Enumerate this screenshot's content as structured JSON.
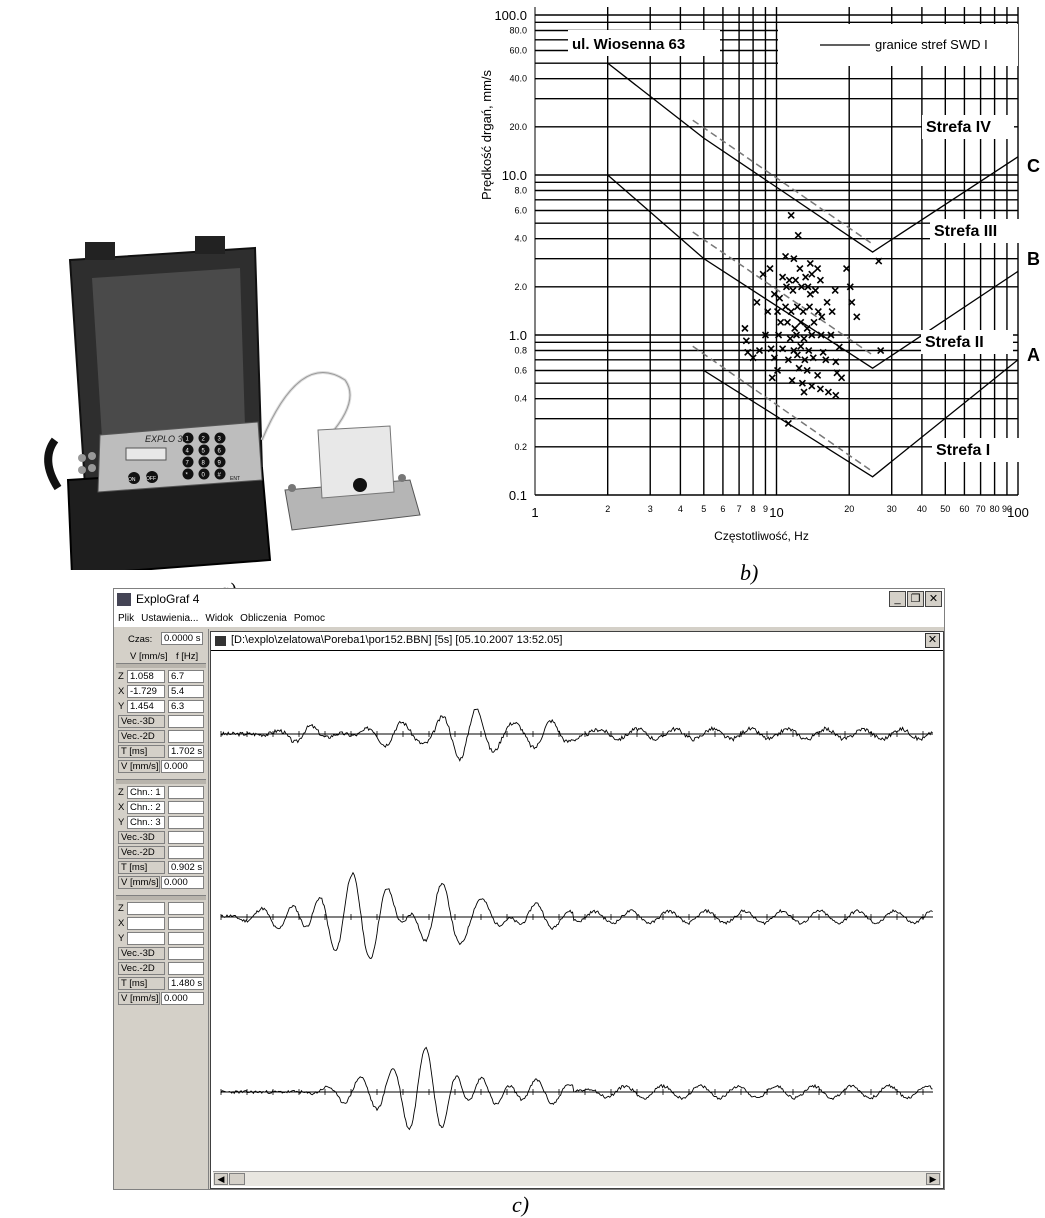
{
  "captions": {
    "a": "a)",
    "b": "b)",
    "c": "c)"
  },
  "photo": {
    "device_label": "EXPLO 384",
    "keypad_keys": [
      "1",
      "2",
      "3",
      "4",
      "5",
      "6",
      "7",
      "8",
      "9",
      "*",
      "0",
      "#"
    ],
    "on_label": "ON",
    "off_label": "OFF",
    "enter_label": "ENT"
  },
  "chart_data": {
    "type": "scatter",
    "title": "ul. Wiosenna 63",
    "xlabel": "Częstotliwość, Hz",
    "ylabel": "Prędkość drgań, mm/s",
    "xscale": "log",
    "yscale": "log",
    "xlim": [
      1,
      100
    ],
    "ylim": [
      0.1,
      100
    ],
    "grid": true,
    "legend": {
      "placement": "top-right",
      "entries": [
        "granice stref SWD I"
      ]
    },
    "x_ticks": [
      "1",
      "2",
      "3",
      "4",
      "5",
      "6",
      "7",
      "8",
      "9",
      "10",
      "20",
      "30",
      "40",
      "50",
      "60",
      "70",
      "80",
      "90",
      "100"
    ],
    "y_ticks": [
      "0.1",
      "0.2",
      "0.4",
      "0.6",
      "0.8",
      "1.0",
      "2.0",
      "4.0",
      "6.0",
      "8.0",
      "10.0",
      "20.0",
      "40.0",
      "60.0",
      "80.0",
      "100.0"
    ],
    "zone_labels": [
      "Strefa IV",
      "Strefa III",
      "Strefa II",
      "Strefa I"
    ],
    "curve_labels": [
      "C",
      "B",
      "A"
    ],
    "boundaries": [
      {
        "name": "C",
        "x": [
          2,
          5,
          25,
          100
        ],
        "y": [
          50,
          17,
          3.3,
          13
        ]
      },
      {
        "name": "B",
        "x": [
          2,
          5,
          25,
          100
        ],
        "y": [
          10,
          3,
          0.62,
          2.5
        ]
      },
      {
        "name": "A",
        "x": [
          2,
          5,
          25,
          100
        ],
        "y": [
          0.6,
          0.6,
          0.13,
          0.7
        ]
      }
    ],
    "dashed_boundaries": [
      {
        "x": [
          4.5,
          25
        ],
        "y": [
          22,
          3.7
        ]
      },
      {
        "x": [
          4.5,
          25
        ],
        "y": [
          4.4,
          0.75
        ]
      },
      {
        "x": [
          4.5,
          25
        ],
        "y": [
          0.85,
          0.14
        ]
      }
    ],
    "points": [
      [
        11.5,
        5.6
      ],
      [
        12.3,
        4.2
      ],
      [
        10.9,
        3.1
      ],
      [
        11.8,
        3.0
      ],
      [
        9.4,
        2.6
      ],
      [
        13.8,
        2.8
      ],
      [
        12.5,
        2.6
      ],
      [
        14.8,
        2.6
      ],
      [
        19.5,
        2.6
      ],
      [
        26.5,
        2.9
      ],
      [
        8.8,
        2.4
      ],
      [
        10.6,
        2.3
      ],
      [
        12.0,
        2.2
      ],
      [
        13.2,
        2.3
      ],
      [
        14.0,
        2.4
      ],
      [
        11.0,
        2.0
      ],
      [
        11.3,
        2.2
      ],
      [
        12.7,
        2.0
      ],
      [
        13.5,
        2.0
      ],
      [
        15.2,
        2.2
      ],
      [
        8.3,
        1.6
      ],
      [
        9.8,
        1.8
      ],
      [
        10.3,
        1.7
      ],
      [
        11.7,
        1.9
      ],
      [
        13.8,
        1.8
      ],
      [
        14.5,
        1.9
      ],
      [
        17.5,
        1.9
      ],
      [
        20.2,
        2.0
      ],
      [
        9.2,
        1.4
      ],
      [
        10.1,
        1.4
      ],
      [
        10.9,
        1.5
      ],
      [
        11.5,
        1.4
      ],
      [
        12.2,
        1.5
      ],
      [
        12.9,
        1.4
      ],
      [
        13.7,
        1.5
      ],
      [
        14.9,
        1.4
      ],
      [
        16.2,
        1.6
      ],
      [
        20.5,
        1.6
      ],
      [
        10.4,
        1.2
      ],
      [
        11.1,
        1.2
      ],
      [
        11.9,
        1.1
      ],
      [
        12.6,
        1.2
      ],
      [
        13.4,
        1.1
      ],
      [
        14.3,
        1.2
      ],
      [
        15.4,
        1.3
      ],
      [
        17.0,
        1.4
      ],
      [
        21.5,
        1.3
      ],
      [
        7.4,
        1.1
      ],
      [
        9.0,
        1.0
      ],
      [
        10.2,
        1.0
      ],
      [
        11.4,
        0.95
      ],
      [
        12.1,
        1.0
      ],
      [
        13.0,
        0.95
      ],
      [
        14.0,
        1.0
      ],
      [
        15.3,
        1.0
      ],
      [
        16.8,
        1.0
      ],
      [
        7.5,
        0.92
      ],
      [
        8.5,
        0.8
      ],
      [
        9.5,
        0.82
      ],
      [
        10.6,
        0.82
      ],
      [
        11.8,
        0.8
      ],
      [
        12.6,
        0.85
      ],
      [
        13.6,
        0.8
      ],
      [
        15.6,
        0.78
      ],
      [
        18.2,
        0.84
      ],
      [
        27.0,
        0.8
      ],
      [
        7.6,
        0.78
      ],
      [
        9.8,
        0.72
      ],
      [
        11.2,
        0.7
      ],
      [
        12.2,
        0.75
      ],
      [
        13.1,
        0.7
      ],
      [
        14.2,
        0.72
      ],
      [
        16.0,
        0.7
      ],
      [
        17.6,
        0.68
      ],
      [
        8.0,
        0.72
      ],
      [
        10.1,
        0.6
      ],
      [
        12.4,
        0.62
      ],
      [
        13.4,
        0.6
      ],
      [
        14.8,
        0.56
      ],
      [
        17.8,
        0.58
      ],
      [
        18.6,
        0.54
      ],
      [
        9.6,
        0.54
      ],
      [
        11.6,
        0.52
      ],
      [
        12.8,
        0.5
      ],
      [
        14.0,
        0.48
      ],
      [
        15.2,
        0.46
      ],
      [
        16.4,
        0.44
      ],
      [
        17.6,
        0.42
      ],
      [
        13.0,
        0.44
      ],
      [
        11.2,
        0.28
      ]
    ]
  },
  "app": {
    "title": "ExploGraf 4",
    "menu": [
      "Plik",
      "Ustawienia...",
      "Widok",
      "Obliczenia",
      "Pomoc"
    ],
    "doc_title": "[D:\\explo\\zelatowa\\Poreba1\\por152.BBN] [5s] [05.10.2007  13:52.05]",
    "left_panel": {
      "czas_label": "Czas:",
      "czas_value": "0.0000 s",
      "v_header": "V [mm/s]",
      "f_header": "f [Hz]",
      "block1": {
        "rows": [
          {
            "ax": "Z",
            "v": "1.058",
            "f": "6.7"
          },
          {
            "ax": "X",
            "v": "-1.729",
            "f": "5.4"
          },
          {
            "ax": "Y",
            "v": "1.454",
            "f": "6.3"
          }
        ],
        "vec3d": "Vec.-3D",
        "vec2d": "Vec.-2D",
        "t_label": "T [ms]",
        "t_value": "1.702 s",
        "v_label": "V [mm/s]",
        "v_value": "0.000"
      },
      "block2": {
        "rows": [
          {
            "ax": "Z",
            "v": "Chn.: 1",
            "f": ""
          },
          {
            "ax": "X",
            "v": "Chn.: 2",
            "f": ""
          },
          {
            "ax": "Y",
            "v": "Chn.: 3",
            "f": ""
          }
        ],
        "vec3d": "Vec.-3D",
        "vec2d": "Vec.-2D",
        "t_label": "T [ms]",
        "t_value": "0.902 s",
        "v_label": "V [mm/s]",
        "v_value": "0.000"
      },
      "block3": {
        "rows": [
          {
            "ax": "Z",
            "v": "",
            "f": ""
          },
          {
            "ax": "X",
            "v": "",
            "f": ""
          },
          {
            "ax": "Y",
            "v": "",
            "f": ""
          }
        ],
        "vec3d": "Vec.-3D",
        "vec2d": "Vec.-2D",
        "t_label": "T [ms]",
        "t_value": "1.480 s",
        "v_label": "V [mm/s]",
        "v_value": "0.000"
      }
    },
    "traces": [
      {
        "channel": "Z"
      },
      {
        "channel": "X"
      },
      {
        "channel": "Y"
      }
    ]
  }
}
